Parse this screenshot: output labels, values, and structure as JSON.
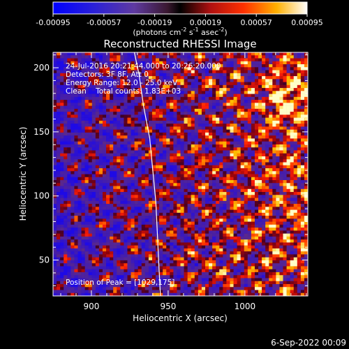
{
  "chart_data": {
    "type": "heatmap",
    "title": "Reconstructed RHESSI Image",
    "xlabel": "Heliocentric X (arcsec)",
    "ylabel": "Heliocentric Y (arcsec)",
    "xlim": [
      875,
      1041
    ],
    "ylim": [
      22,
      212
    ],
    "x_ticks": [
      900,
      950,
      1000
    ],
    "y_ticks": [
      50,
      100,
      150,
      200
    ],
    "colorbar": {
      "ticks": [
        "-0.00095",
        "-0.00057",
        "-0.00019",
        "0.00019",
        "0.00057",
        "0.00095"
      ],
      "range": [
        -0.00095,
        0.00095
      ],
      "unit_label": "(photons cm",
      "unit_exp1": "-2",
      "unit_mid": " s",
      "unit_exp2": "-1",
      "unit_mid2": " asec",
      "unit_exp3": "-2",
      "unit_end": ")"
    },
    "annotations": [
      "24-Jul-2016 20:21:44.000 to 20:26:20.000",
      "Detectors: 3F 8F, Att 0",
      "Energy Range: 12.0 - 25.0 keV",
      "Clean    Total counts: 1.83E+03"
    ],
    "peak_label": "Position of Peak = [1029,175]",
    "peak": [
      1029,
      175
    ],
    "limb_curve": [
      [
        928,
        212
      ],
      [
        931,
        195
      ],
      [
        934,
        170
      ],
      [
        938,
        145
      ],
      [
        940,
        120
      ],
      [
        942,
        95
      ],
      [
        943,
        70
      ],
      [
        944,
        45
      ],
      [
        945,
        22
      ]
    ],
    "image_grid": {
      "cols": 72,
      "rows": 82
    }
  },
  "footer": {
    "date": "6-Sep-2022 00:09"
  }
}
